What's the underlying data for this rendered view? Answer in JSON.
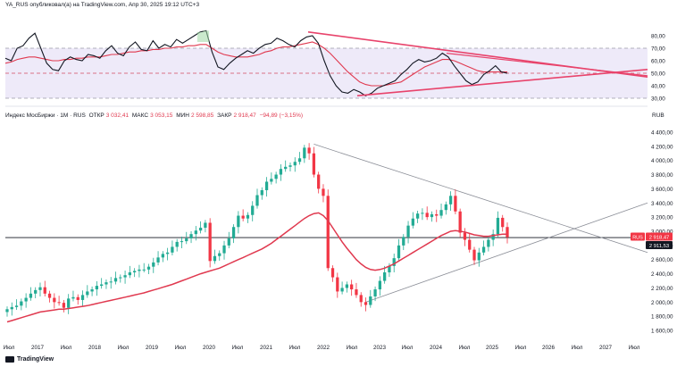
{
  "header": {
    "text": "YA_RUS опубликовал(а) на TradingView.com, Апр 30, 2025 19:12 UTC+3"
  },
  "legend": {
    "name": "Индекс МосБиржи · 1М · RUS",
    "items": [
      {
        "key": "ОТКР",
        "value": "3 032,41"
      },
      {
        "key": "МАКС",
        "value": "3 053,15"
      },
      {
        "key": "МИН",
        "value": "2 598,85"
      },
      {
        "key": "ЗАКР",
        "value": "2 918,47"
      },
      {
        "key": "",
        "value": "−94,89 (−3,15%)"
      }
    ]
  },
  "unit": "RUB",
  "price_labels": {
    "rus_tag": "RUS",
    "rus_price": "2 918,47",
    "black_price": "2 911,53"
  },
  "brand": {
    "text": "TradingView"
  },
  "colors": {
    "up": "#22ab94",
    "down": "#f23645",
    "ma": "#e0394f",
    "trend_red": "#e8436b",
    "trend_gray": "#8a8d96",
    "osc": "#131722"
  },
  "chart_data": [
    {
      "type": "line",
      "panel": "oscillator",
      "ylim": [
        25,
        90
      ],
      "y_ticks": [
        "80,00",
        "70,00",
        "60,00",
        "50,00",
        "40,00",
        "30,00"
      ],
      "levels": [
        70,
        50,
        30
      ],
      "series": [
        {
          "name": "",
          "values": [
            62,
            60,
            70,
            72,
            78,
            82,
            70,
            58,
            53,
            52,
            60,
            63,
            61,
            60,
            65,
            64,
            62,
            68,
            72,
            66,
            64,
            71,
            75,
            69,
            68,
            76,
            70,
            73,
            71,
            77,
            74,
            77,
            80,
            83,
            84,
            67,
            55,
            53,
            58,
            62,
            65,
            68,
            66,
            70,
            73,
            74,
            78,
            76,
            73,
            71,
            76,
            79,
            80,
            74,
            60,
            48,
            40,
            35,
            34,
            37,
            35,
            32,
            34,
            38,
            40,
            42,
            44,
            49,
            53,
            58,
            61,
            59,
            60,
            62,
            66,
            63,
            56,
            50,
            44,
            41,
            43,
            49,
            52,
            56,
            51,
            50
          ]
        },
        {
          "name": "",
          "values": [
            58,
            59,
            61,
            62,
            63,
            63,
            62,
            61,
            60,
            60,
            61,
            61,
            62,
            62,
            63,
            63,
            63,
            64,
            65,
            65,
            66,
            67,
            67,
            68,
            68,
            69,
            69,
            70,
            70,
            71,
            71,
            72,
            72,
            73,
            73,
            70,
            67,
            65,
            64,
            63,
            63,
            63,
            64,
            65,
            67,
            68,
            70,
            71,
            71,
            72,
            73,
            74,
            75,
            73,
            70,
            66,
            61,
            56,
            51,
            47,
            43,
            41,
            40,
            40,
            40,
            41,
            42,
            43,
            46,
            49,
            52,
            55,
            57,
            59,
            61,
            61,
            60,
            58,
            56,
            54,
            52,
            51,
            51,
            51,
            51,
            51
          ]
        }
      ]
    },
    {
      "type": "candlestick",
      "panel": "price",
      "ylim": [
        1500,
        4500
      ],
      "y_ticks": [
        "4 400,00",
        "4 200,00",
        "4 000,00",
        "3 800,00",
        "3 600,00",
        "3 400,00",
        "3 200,00",
        "3 000,00",
        "2 800,00",
        "2 600,00",
        "2 400,00",
        "2 200,00",
        "2 000,00",
        "1 800,00",
        "1 600,00"
      ],
      "x_labels": [
        "Июл",
        "2017",
        "Июл",
        "2018",
        "Июл",
        "2019",
        "Июл",
        "2020",
        "Июл",
        "2021",
        "Июл",
        "2022",
        "Июл",
        "2023",
        "Июл",
        "2024",
        "Июл",
        "2025",
        "Июл",
        "2026",
        "Июл",
        "2027",
        "Июл"
      ],
      "close": [
        1900,
        1930,
        1950,
        2010,
        2060,
        2120,
        2170,
        2210,
        2120,
        2060,
        2000,
        1990,
        1920,
        2050,
        2070,
        2030,
        2100,
        2150,
        2180,
        2230,
        2250,
        2280,
        2290,
        2340,
        2350,
        2380,
        2420,
        2440,
        2460,
        2460,
        2500,
        2560,
        2630,
        2680,
        2700,
        2780,
        2850,
        2860,
        2900,
        2960,
        3010,
        3050,
        3120,
        2580,
        2650,
        2690,
        2800,
        2900,
        3060,
        3220,
        3180,
        3230,
        3360,
        3510,
        3580,
        3700,
        3740,
        3800,
        3880,
        3910,
        3930,
        3980,
        4030,
        4180,
        4100,
        3800,
        3600,
        3500,
        2480,
        2350,
        2150,
        2200,
        2250,
        2180,
        2100,
        2000,
        1960,
        2080,
        2180,
        2300,
        2420,
        2510,
        2620,
        2800,
        2920,
        3080,
        3180,
        3250,
        3260,
        3200,
        3240,
        3220,
        3300,
        3380,
        3500,
        3280,
        2980,
        2880,
        2740,
        2590,
        2700,
        2780,
        2880,
        2960,
        3190,
        3060,
        2918
      ],
      "ma_values": [
        1720,
        1740,
        1760,
        1780,
        1800,
        1820,
        1840,
        1860,
        1870,
        1880,
        1890,
        1900,
        1900,
        1910,
        1920,
        1930,
        1940,
        1950,
        1965,
        1980,
        1995,
        2010,
        2025,
        2040,
        2055,
        2070,
        2085,
        2100,
        2115,
        2130,
        2150,
        2170,
        2190,
        2210,
        2230,
        2250,
        2275,
        2300,
        2325,
        2350,
        2375,
        2400,
        2420,
        2440,
        2460,
        2480,
        2510,
        2540,
        2570,
        2600,
        2630,
        2660,
        2690,
        2720,
        2750,
        2790,
        2830,
        2880,
        2930,
        2980,
        3030,
        3080,
        3130,
        3180,
        3220,
        3250,
        3260,
        3220,
        3150,
        3050,
        2950,
        2850,
        2760,
        2680,
        2600,
        2540,
        2490,
        2460,
        2450,
        2460,
        2480,
        2510,
        2540,
        2580,
        2620,
        2660,
        2700,
        2740,
        2780,
        2820,
        2860,
        2900,
        2940,
        2970,
        3000,
        3010,
        3000,
        2990,
        2970,
        2950,
        2940,
        2930,
        2930,
        2940,
        2950,
        2960,
        2960
      ]
    }
  ]
}
